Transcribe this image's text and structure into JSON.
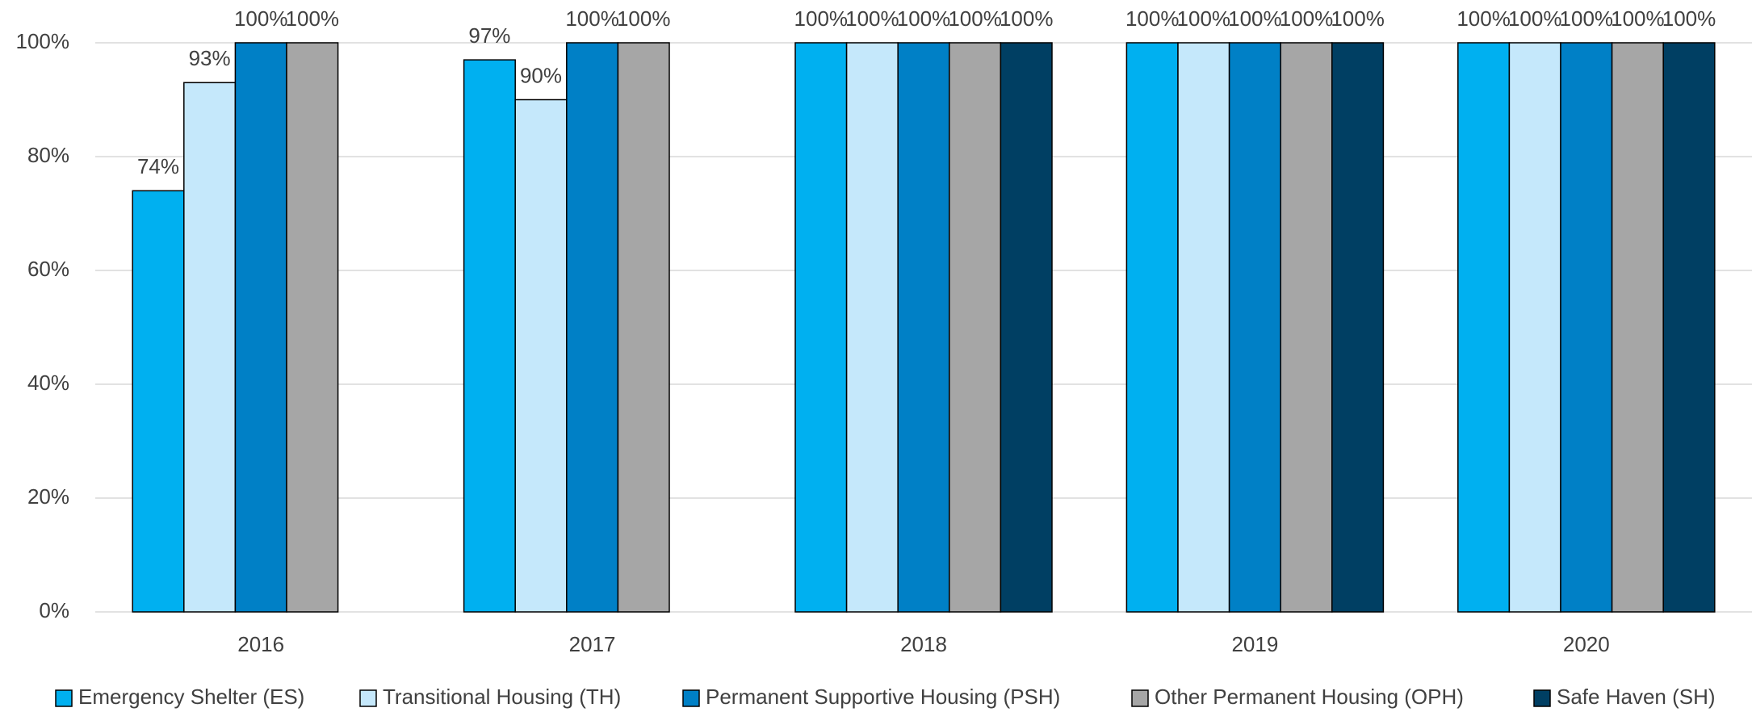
{
  "chart_data": {
    "type": "bar",
    "categories": [
      "2016",
      "2017",
      "2018",
      "2019",
      "2020"
    ],
    "series": [
      {
        "name": "Emergency Shelter (ES)",
        "color": "#00b0f0",
        "values": [
          74,
          97,
          100,
          100,
          100
        ],
        "value_labels": [
          "74%",
          "97%",
          "100%",
          "100%",
          "100%"
        ]
      },
      {
        "name": "Transitional Housing (TH)",
        "color": "#c5e8fb",
        "values": [
          93,
          90,
          100,
          100,
          100
        ],
        "value_labels": [
          "93%",
          "90%",
          "100%",
          "100%",
          "100%"
        ]
      },
      {
        "name": "Permanent Supportive Housing (PSH)",
        "color": "#0080c6",
        "values": [
          100,
          100,
          100,
          100,
          100
        ],
        "value_labels": [
          "100%",
          "100%",
          "100%",
          "100%",
          "100%"
        ]
      },
      {
        "name": "Other Permanent Housing (OPH)",
        "color": "#a6a6a6",
        "values": [
          100,
          100,
          100,
          100,
          100
        ],
        "value_labels": [
          "100%",
          "100%",
          "100%",
          "100%",
          "100%"
        ]
      },
      {
        "name": "Safe Haven (SH)",
        "color": "#003f63",
        "values": [
          null,
          null,
          100,
          100,
          100
        ],
        "value_labels": [
          null,
          null,
          "100%",
          "100%",
          "100%"
        ]
      }
    ],
    "ylim": [
      0,
      100
    ],
    "yticks": [
      {
        "value": 0,
        "label": "0%"
      },
      {
        "value": 20,
        "label": "20%"
      },
      {
        "value": 40,
        "label": "40%"
      },
      {
        "value": 60,
        "label": "60%"
      },
      {
        "value": 80,
        "label": "80%"
      },
      {
        "value": 100,
        "label": "100%"
      }
    ],
    "grid": true,
    "legend": "bottom"
  }
}
